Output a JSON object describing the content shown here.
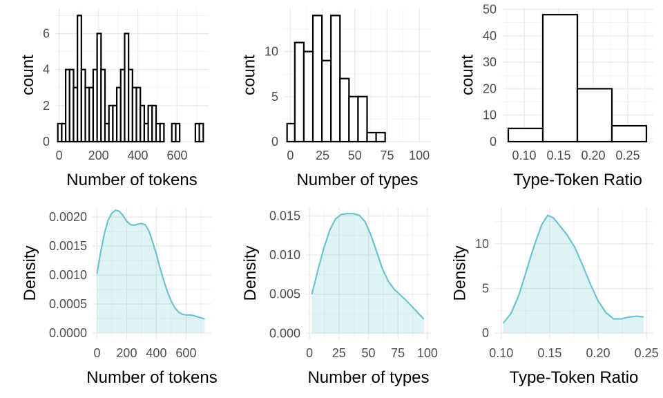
{
  "chart_data": [
    {
      "type": "bar",
      "variant": "histogram",
      "xlabel": "Number of tokens",
      "ylabel": "count",
      "xlim": [
        -20,
        760
      ],
      "ylim": [
        0,
        7.4
      ],
      "xticks": [
        0,
        200,
        400,
        600
      ],
      "yticks": [
        0,
        2,
        4,
        6
      ],
      "bars": [
        {
          "x0": -7,
          "x1": 13,
          "count": 1
        },
        {
          "x0": 13,
          "x1": 33,
          "count": 1
        },
        {
          "x0": 33,
          "x1": 53,
          "count": 4
        },
        {
          "x0": 53,
          "x1": 73,
          "count": 4
        },
        {
          "x0": 73,
          "x1": 93,
          "count": 3
        },
        {
          "x0": 93,
          "x1": 113,
          "count": 7
        },
        {
          "x0": 113,
          "x1": 133,
          "count": 4
        },
        {
          "x0": 133,
          "x1": 153,
          "count": 3
        },
        {
          "x0": 153,
          "x1": 173,
          "count": 3
        },
        {
          "x0": 173,
          "x1": 193,
          "count": 4
        },
        {
          "x0": 193,
          "x1": 213,
          "count": 6
        },
        {
          "x0": 213,
          "x1": 233,
          "count": 4
        },
        {
          "x0": 233,
          "x1": 253,
          "count": 1
        },
        {
          "x0": 253,
          "x1": 273,
          "count": 2
        },
        {
          "x0": 273,
          "x1": 293,
          "count": 2
        },
        {
          "x0": 293,
          "x1": 313,
          "count": 3
        },
        {
          "x0": 313,
          "x1": 333,
          "count": 4
        },
        {
          "x0": 333,
          "x1": 353,
          "count": 6
        },
        {
          "x0": 353,
          "x1": 373,
          "count": 4
        },
        {
          "x0": 373,
          "x1": 393,
          "count": 3
        },
        {
          "x0": 393,
          "x1": 413,
          "count": 3
        },
        {
          "x0": 413,
          "x1": 433,
          "count": 2
        },
        {
          "x0": 433,
          "x1": 453,
          "count": 1
        },
        {
          "x0": 453,
          "x1": 473,
          "count": 2
        },
        {
          "x0": 473,
          "x1": 493,
          "count": 2
        },
        {
          "x0": 493,
          "x1": 513,
          "count": 1
        },
        {
          "x0": 513,
          "x1": 533,
          "count": 1
        },
        {
          "x0": 533,
          "x1": 553,
          "count": 0
        },
        {
          "x0": 553,
          "x1": 573,
          "count": 0
        },
        {
          "x0": 573,
          "x1": 593,
          "count": 1
        },
        {
          "x0": 593,
          "x1": 613,
          "count": 1
        },
        {
          "x0": 613,
          "x1": 633,
          "count": 0
        },
        {
          "x0": 633,
          "x1": 653,
          "count": 0
        },
        {
          "x0": 653,
          "x1": 673,
          "count": 0
        },
        {
          "x0": 673,
          "x1": 693,
          "count": 0
        },
        {
          "x0": 693,
          "x1": 713,
          "count": 1
        },
        {
          "x0": 713,
          "x1": 733,
          "count": 1
        }
      ]
    },
    {
      "type": "bar",
      "variant": "histogram",
      "xlabel": "Number of types",
      "ylabel": "count",
      "xlim": [
        -5,
        109
      ],
      "ylim": [
        0,
        14.8
      ],
      "xticks": [
        0,
        25,
        50,
        75,
        100
      ],
      "yticks": [
        0,
        5,
        10
      ],
      "bars": [
        {
          "x0": -2.5,
          "x1": 3.5,
          "count": 2
        },
        {
          "x0": 3.5,
          "x1": 10.5,
          "count": 11
        },
        {
          "x0": 10.5,
          "x1": 17.5,
          "count": 10
        },
        {
          "x0": 17.5,
          "x1": 24.5,
          "count": 14
        },
        {
          "x0": 24.5,
          "x1": 31.5,
          "count": 9
        },
        {
          "x0": 31.5,
          "x1": 38.5,
          "count": 14
        },
        {
          "x0": 38.5,
          "x1": 45.5,
          "count": 7
        },
        {
          "x0": 45.5,
          "x1": 52.5,
          "count": 5
        },
        {
          "x0": 52.5,
          "x1": 59.5,
          "count": 5
        },
        {
          "x0": 59.5,
          "x1": 66.5,
          "count": 1
        },
        {
          "x0": 66.5,
          "x1": 73.5,
          "count": 1
        }
      ]
    },
    {
      "type": "bar",
      "variant": "histogram",
      "xlabel": "Type-Token Ratio",
      "ylabel": "count",
      "xlim": [
        0.068,
        0.287
      ],
      "ylim": [
        0,
        50.4
      ],
      "xticks": [
        0.1,
        0.15,
        0.2,
        0.25
      ],
      "xtick_labels": [
        "0.10",
        "0.15",
        "0.20",
        "0.25"
      ],
      "yticks": [
        0,
        10,
        20,
        30,
        40,
        50
      ],
      "bars": [
        {
          "x0": 0.077,
          "x1": 0.127,
          "count": 5
        },
        {
          "x0": 0.127,
          "x1": 0.177,
          "count": 48
        },
        {
          "x0": 0.177,
          "x1": 0.227,
          "count": 20
        },
        {
          "x0": 0.227,
          "x1": 0.277,
          "count": 6
        }
      ]
    },
    {
      "type": "area",
      "variant": "density",
      "xlabel": "Number of tokens",
      "ylabel": "Density",
      "xlim": [
        -30,
        770
      ],
      "ylim": [
        -0.00011,
        0.00217
      ],
      "xticks": [
        0,
        200,
        400,
        600
      ],
      "yticks": [
        0,
        0.0005,
        0.001,
        0.0015,
        0.002
      ],
      "ytick_labels": [
        "0.0000",
        "0.0005",
        "0.0010",
        "0.0015",
        "0.0020"
      ],
      "x": [
        0,
        25,
        50,
        75,
        100,
        125,
        150,
        175,
        200,
        225,
        250,
        275,
        300,
        325,
        350,
        375,
        400,
        425,
        450,
        475,
        500,
        525,
        550,
        575,
        600,
        625,
        650,
        675,
        700,
        725
      ],
      "y": [
        0.00102,
        0.0014,
        0.00172,
        0.00195,
        0.00207,
        0.00212,
        0.0021,
        0.00203,
        0.00193,
        0.00187,
        0.00186,
        0.00188,
        0.00189,
        0.00187,
        0.00176,
        0.00157,
        0.00136,
        0.00112,
        0.0009,
        0.00071,
        0.00055,
        0.00043,
        0.00036,
        0.00032,
        0.00031,
        0.00031,
        0.0003,
        0.00028,
        0.00026,
        0.00024
      ]
    },
    {
      "type": "area",
      "variant": "density",
      "xlabel": "Number of types",
      "ylabel": "Density",
      "xlim": [
        -3,
        103
      ],
      "ylim": [
        -0.00077,
        0.0161
      ],
      "xticks": [
        0,
        25,
        50,
        75,
        100
      ],
      "yticks": [
        0,
        0.005,
        0.01,
        0.015
      ],
      "ytick_labels": [
        "0.000",
        "0.005",
        "0.010",
        "0.015"
      ],
      "x": [
        2,
        7,
        12,
        17,
        22,
        27,
        32,
        37,
        42,
        47,
        52,
        57,
        62,
        67,
        72,
        77,
        82,
        87,
        92,
        97
      ],
      "y": [
        0.005,
        0.008,
        0.0108,
        0.0131,
        0.0146,
        0.0152,
        0.0153,
        0.0153,
        0.0151,
        0.0143,
        0.0126,
        0.0104,
        0.0082,
        0.0066,
        0.0056,
        0.0049,
        0.0042,
        0.0034,
        0.0026,
        0.0018
      ]
    },
    {
      "type": "area",
      "variant": "density",
      "xlabel": "Type-Token Ratio",
      "ylabel": "Density",
      "xlim": [
        0.093,
        0.257
      ],
      "ylim": [
        -0.69,
        14.1
      ],
      "xticks": [
        0.1,
        0.15,
        0.2,
        0.25
      ],
      "xtick_labels": [
        "0.10",
        "0.15",
        "0.20",
        "0.25"
      ],
      "yticks": [
        0,
        5,
        10
      ],
      "x": [
        0.102,
        0.11,
        0.118,
        0.126,
        0.134,
        0.142,
        0.148,
        0.154,
        0.16,
        0.168,
        0.176,
        0.184,
        0.192,
        0.2,
        0.208,
        0.216,
        0.224,
        0.232,
        0.24,
        0.247
      ],
      "y": [
        1.1,
        2.2,
        4.2,
        7.0,
        9.8,
        12.2,
        13.2,
        12.9,
        12.1,
        11.0,
        9.6,
        7.6,
        5.5,
        3.6,
        2.3,
        1.6,
        1.6,
        1.8,
        1.9,
        1.8
      ]
    }
  ]
}
